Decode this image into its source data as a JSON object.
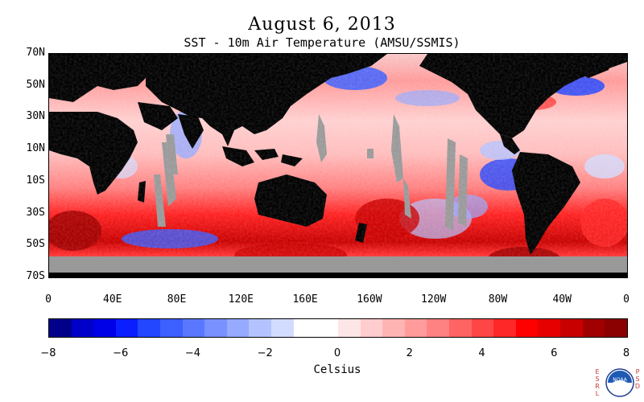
{
  "title": "August 6, 2013",
  "subtitle": "SST - 10m Air Temperature (AMSU/SSMIS)",
  "map": {
    "lat_labels": [
      "70N",
      "50N",
      "30N",
      "10N",
      "10S",
      "30S",
      "50S",
      "70S"
    ],
    "lat_values": [
      70,
      50,
      30,
      10,
      -10,
      -30,
      -50,
      -70
    ],
    "lon_labels": [
      "0",
      "40E",
      "80E",
      "120E",
      "160E",
      "160W",
      "120W",
      "80W",
      "40W",
      "0"
    ],
    "lon_values": [
      0,
      40,
      80,
      120,
      160,
      200,
      240,
      280,
      320,
      360
    ],
    "lat_range": [
      -70,
      70
    ],
    "lon_range": [
      0,
      360
    ],
    "colors": {
      "land": "#000000",
      "no_data": "#999999"
    }
  },
  "colorbar": {
    "min": -8,
    "max": 8,
    "tick_labels": [
      "−8",
      "−6",
      "−4",
      "−2",
      "0",
      "2",
      "4",
      "6",
      "8"
    ],
    "tick_values": [
      -8,
      -6,
      -4,
      -2,
      0,
      2,
      4,
      6,
      8
    ],
    "colors": [
      "#00008b",
      "#0000c8",
      "#0000e6",
      "#0a1eff",
      "#2346ff",
      "#3c5fff",
      "#5a78ff",
      "#7891ff",
      "#96aaff",
      "#b4c3ff",
      "#d2dcff",
      "#ffffff",
      "#ffffff",
      "#ffe6e6",
      "#ffcdcd",
      "#ffb4b4",
      "#ff9b9b",
      "#ff8282",
      "#ff6464",
      "#ff4646",
      "#ff2828",
      "#ff0000",
      "#e60000",
      "#c80000",
      "#a00000",
      "#8b0000"
    ],
    "units": "Celsius"
  },
  "logo": {
    "left_text": "E\nS\nR\nL",
    "right_text": "P\nS\nD",
    "seal_text": "NOAA"
  }
}
